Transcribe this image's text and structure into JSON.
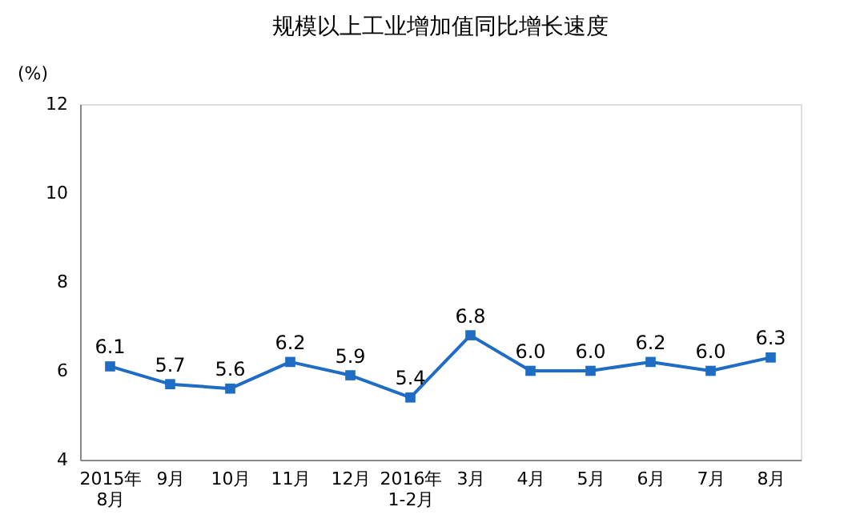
{
  "chart_data": {
    "type": "line",
    "title": "规模以上工业增加值同比增长速度",
    "ylabel": "(%)",
    "categories": [
      "2015年\n8月",
      "9月",
      "10月",
      "11月",
      "12月",
      "2016年\n1-2月",
      "3月",
      "4月",
      "5月",
      "6月",
      "7月",
      "8月"
    ],
    "series": [
      {
        "color": "#1f6cc4",
        "values": [
          6.1,
          5.7,
          5.6,
          6.2,
          5.9,
          5.4,
          6.8,
          6.0,
          6.0,
          6.2,
          6.0,
          6.3
        ],
        "value_labels": [
          "6.1",
          "5.7",
          "5.6",
          "6.2",
          "5.9",
          "5.4",
          "6.8",
          "6.0",
          "6.0",
          "6.2",
          "6.0",
          "6.3"
        ]
      }
    ],
    "ylim": [
      4,
      12
    ],
    "yticks": [
      4,
      6,
      8,
      10,
      12
    ],
    "marker": "square",
    "line_style": "solid",
    "grid": false
  }
}
